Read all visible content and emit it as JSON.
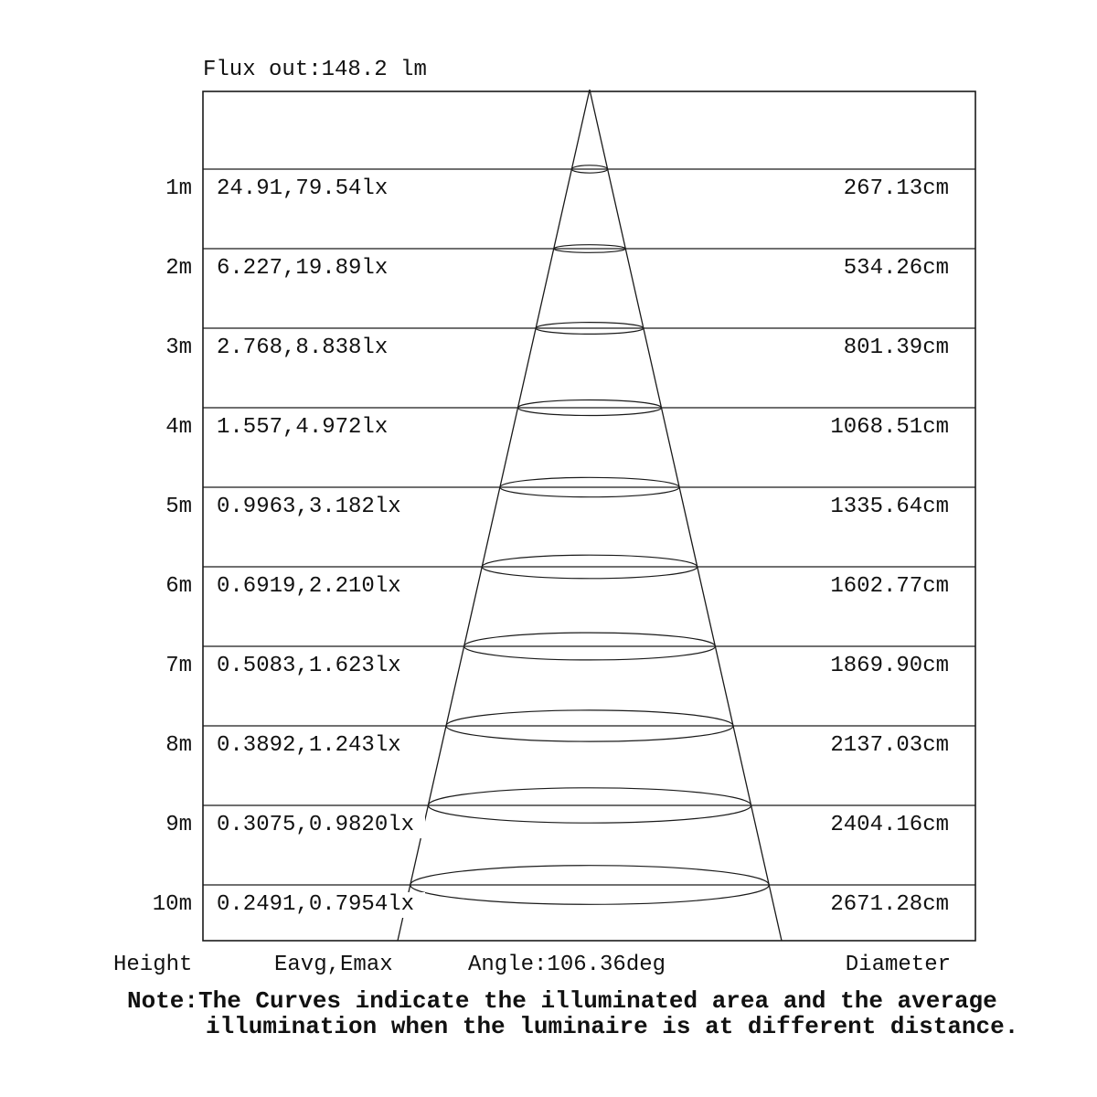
{
  "title": "Flux out:148.2 lm",
  "columns": {
    "height": "Height",
    "eavg_emax": "Eavg,Emax",
    "angle": "Angle:106.36deg",
    "diameter": "Diameter"
  },
  "note_line1": "Note:The Curves indicate the illuminated area and the average",
  "note_line2": "illumination when the luminaire is at different distance.",
  "rows": [
    {
      "height": "1m",
      "eavg_emax": "24.91,79.54lx",
      "diameter": "267.13cm"
    },
    {
      "height": "2m",
      "eavg_emax": "6.227,19.89lx",
      "diameter": "534.26cm"
    },
    {
      "height": "3m",
      "eavg_emax": "2.768,8.838lx",
      "diameter": "801.39cm"
    },
    {
      "height": "4m",
      "eavg_emax": "1.557,4.972lx",
      "diameter": "1068.51cm"
    },
    {
      "height": "5m",
      "eavg_emax": "0.9963,3.182lx",
      "diameter": "1335.64cm"
    },
    {
      "height": "6m",
      "eavg_emax": "0.6919,2.210lx",
      "diameter": "1602.77cm"
    },
    {
      "height": "7m",
      "eavg_emax": "0.5083,1.623lx",
      "diameter": "1869.90cm"
    },
    {
      "height": "8m",
      "eavg_emax": "0.3892,1.243lx",
      "diameter": "2137.03cm"
    },
    {
      "height": "9m",
      "eavg_emax": "0.3075,0.9820lx",
      "diameter": "2404.16cm"
    },
    {
      "height": "10m",
      "eavg_emax": "0.2491,0.7954lx",
      "diameter": "2671.28cm"
    }
  ],
  "chart_data": {
    "type": "table",
    "title": "Flux out:148.2 lm",
    "flux_out_lm": 148.2,
    "beam_angle_deg": 106.36,
    "columns": [
      "Height (m)",
      "Eavg (lx)",
      "Emax (lx)",
      "Diameter (cm)"
    ],
    "heights_m": [
      1,
      2,
      3,
      4,
      5,
      6,
      7,
      8,
      9,
      10
    ],
    "eavg_lx": [
      24.91,
      6.227,
      2.768,
      1.557,
      0.9963,
      0.6919,
      0.5083,
      0.3892,
      0.3075,
      0.2491
    ],
    "emax_lx": [
      79.54,
      19.89,
      8.838,
      4.972,
      3.182,
      2.21,
      1.623,
      1.243,
      0.982,
      0.7954
    ],
    "diameter_cm": [
      267.13,
      534.26,
      801.39,
      1068.51,
      1335.64,
      1602.77,
      1869.9,
      2137.03,
      2404.16,
      2671.28
    ],
    "note": "The Curves indicate the illuminated area and the average illumination when the luminaire is at different distance."
  },
  "colors": {
    "line": "#1a1a1a",
    "text": "#111111",
    "background": "#ffffff"
  }
}
